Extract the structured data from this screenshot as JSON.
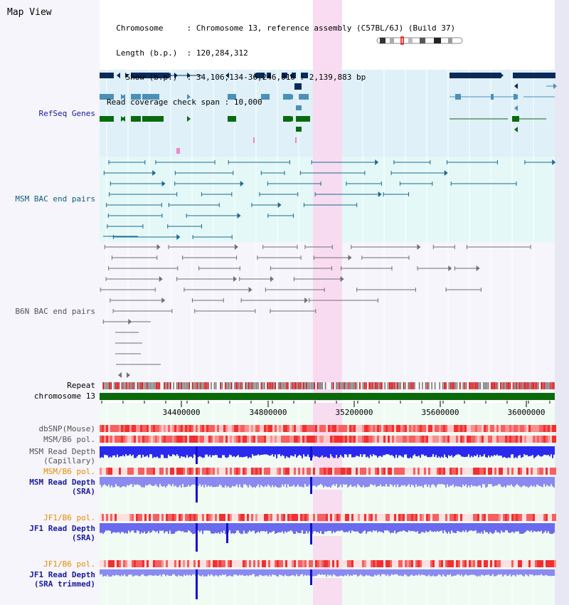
{
  "title": "Map View",
  "info": {
    "chromosome_label": "Chromosome",
    "chromosome_value": "Chromosome 13, reference assembly (C57BL/6J) (Build 37)",
    "length_label": "Length (b.p.)",
    "length_value": "120,284,312",
    "show_label": "Show (b.p.)",
    "show_value": "34,106,134-36,246,016 : 2,139,883 bp",
    "coverage_label": "Read coverage check span",
    "coverage_value": "10,000"
  },
  "track_labels": {
    "refseq": "RefSeq Genes",
    "msm_bac": "MSM BAC end pairs",
    "b6n_bac": "B6N BAC end pairs",
    "repeat": "Repeat",
    "chromosome": "chromosome 13",
    "dbsnp": "dbSNP(Mouse)",
    "msm_b6_pol_1": "MSM/B6 pol.",
    "msm_read_depth_cap_1": "MSM Read Depth",
    "msm_read_depth_cap_2": "(Capillary)",
    "msm_b6_pol_2": "MSM/B6 pol.",
    "msm_read_depth_sra_1": "MSM Read Depth",
    "msm_read_depth_sra_2": "(SRA)",
    "jf1_b6_pol_1": "JF1/B6 pol.",
    "jf1_read_depth_sra_1": "JF1 Read Depth",
    "jf1_read_depth_sra_2": "(SRA)",
    "jf1_b6_pol_2": "JF1/B6 pol.",
    "jf1_read_depth_trim_1": "JF1 Read Depth",
    "jf1_read_depth_trim_2": "(SRA trimmed)"
  },
  "axis": {
    "ticks": [
      "34400000",
      "34800000",
      "35200000",
      "35600000",
      "36000000"
    ]
  },
  "colors": {
    "refseq_bg": "#dff0f8",
    "bac_bg": "#e4f8f8",
    "highlight": "#f8d8f0",
    "navy": "#0a2a5a",
    "teal_gene": "#4a90b8",
    "green_gene": "#0a6a10",
    "bac_teal": "#1a6a90",
    "bac_gray": "#707070",
    "chromosome_bar": "#0a6a0a",
    "depth_dark": "#2222ee",
    "depth_light": "#7a7aee"
  }
}
